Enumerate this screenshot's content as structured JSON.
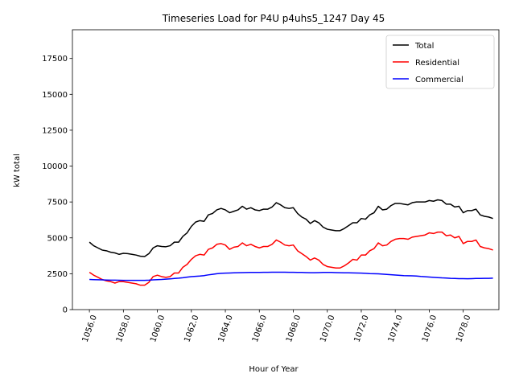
{
  "chart_data": {
    "type": "line",
    "title": "Timeseries Load for P4U p4uhs5_1247  Day 45",
    "xlabel": "Hour of Year",
    "ylabel": "kW total",
    "xlim": [
      1055.0,
      1080.1
    ],
    "ylim": [
      0,
      19500
    ],
    "xticks": [
      1056,
      1058,
      1060,
      1062,
      1064,
      1066,
      1068,
      1070,
      1072,
      1074,
      1076,
      1078
    ],
    "xtick_labels": [
      "1056.0",
      "1058.0",
      "1060.0",
      "1062.0",
      "1064.0",
      "1066.0",
      "1068.0",
      "1070.0",
      "1072.0",
      "1074.0",
      "1076.0",
      "1078.0"
    ],
    "yticks": [
      0,
      2500,
      5000,
      7500,
      10000,
      12500,
      15000,
      17500
    ],
    "ytick_labels": [
      "0",
      "2500",
      "5000",
      "7500",
      "10000",
      "12500",
      "15000",
      "17500"
    ],
    "grid": false,
    "legend_position": "top-right",
    "x": [
      1056.0,
      1056.25,
      1056.5,
      1056.75,
      1057.0,
      1057.25,
      1057.5,
      1057.75,
      1058.0,
      1058.25,
      1058.5,
      1058.75,
      1059.0,
      1059.25,
      1059.5,
      1059.75,
      1060.0,
      1060.25,
      1060.5,
      1060.75,
      1061.0,
      1061.25,
      1061.5,
      1061.75,
      1062.0,
      1062.25,
      1062.5,
      1062.75,
      1063.0,
      1063.25,
      1063.5,
      1063.75,
      1064.0,
      1064.25,
      1064.5,
      1064.75,
      1065.0,
      1065.25,
      1065.5,
      1065.75,
      1066.0,
      1066.25,
      1066.5,
      1066.75,
      1067.0,
      1067.25,
      1067.5,
      1067.75,
      1068.0,
      1068.25,
      1068.5,
      1068.75,
      1069.0,
      1069.25,
      1069.5,
      1069.75,
      1070.0,
      1070.25,
      1070.5,
      1070.75,
      1071.0,
      1071.25,
      1071.5,
      1071.75,
      1072.0,
      1072.25,
      1072.5,
      1072.75,
      1073.0,
      1073.25,
      1073.5,
      1073.75,
      1074.0,
      1074.25,
      1074.5,
      1074.75,
      1075.0,
      1075.25,
      1075.5,
      1075.75,
      1076.0,
      1076.25,
      1076.5,
      1076.75,
      1077.0,
      1077.25,
      1077.5,
      1077.75,
      1078.0,
      1078.25,
      1078.5,
      1078.75,
      1079.0,
      1079.25,
      1079.5,
      1079.75
    ],
    "series": [
      {
        "name": "Total",
        "color": "#000000",
        "values": [
          4700,
          4450,
          4300,
          4150,
          4100,
          4000,
          3950,
          3850,
          3920,
          3900,
          3850,
          3800,
          3720,
          3700,
          3900,
          4300,
          4450,
          4400,
          4380,
          4450,
          4700,
          4700,
          5100,
          5350,
          5800,
          6100,
          6200,
          6150,
          6600,
          6700,
          6950,
          7050,
          6950,
          6750,
          6850,
          6950,
          7200,
          7000,
          7100,
          6950,
          6900,
          7000,
          7000,
          7150,
          7450,
          7300,
          7100,
          7050,
          7100,
          6700,
          6450,
          6300,
          6000,
          6200,
          6050,
          5750,
          5600,
          5550,
          5500,
          5500,
          5650,
          5850,
          6050,
          6050,
          6350,
          6300,
          6600,
          6750,
          7200,
          6950,
          7000,
          7250,
          7400,
          7400,
          7350,
          7300,
          7450,
          7500,
          7500,
          7500,
          7600,
          7550,
          7650,
          7600,
          7350,
          7350,
          7150,
          7200,
          6750,
          6900,
          6900,
          7000,
          6600,
          6500,
          6450,
          6350
        ]
      },
      {
        "name": "Residential",
        "color": "#ff0000",
        "values": [
          2600,
          2400,
          2250,
          2100,
          2000,
          1950,
          1850,
          1950,
          1950,
          1900,
          1850,
          1800,
          1700,
          1700,
          1900,
          2300,
          2400,
          2300,
          2250,
          2300,
          2550,
          2550,
          2950,
          3150,
          3500,
          3750,
          3850,
          3800,
          4200,
          4300,
          4550,
          4600,
          4500,
          4200,
          4350,
          4400,
          4650,
          4450,
          4550,
          4400,
          4300,
          4400,
          4400,
          4550,
          4850,
          4700,
          4500,
          4450,
          4500,
          4100,
          3900,
          3700,
          3450,
          3600,
          3450,
          3150,
          3000,
          2950,
          2900,
          2900,
          3050,
          3250,
          3500,
          3450,
          3800,
          3800,
          4100,
          4250,
          4650,
          4450,
          4500,
          4750,
          4900,
          4950,
          4950,
          4900,
          5050,
          5100,
          5150,
          5200,
          5350,
          5300,
          5400,
          5400,
          5150,
          5200,
          5000,
          5100,
          4600,
          4750,
          4750,
          4850,
          4400,
          4300,
          4250,
          4150
        ]
      },
      {
        "name": "Commercial",
        "color": "#0000ff",
        "values": [
          2100,
          2090,
          2080,
          2070,
          2060,
          2055,
          2050,
          2045,
          2040,
          2040,
          2035,
          2035,
          2035,
          2040,
          2050,
          2070,
          2090,
          2100,
          2120,
          2140,
          2170,
          2190,
          2220,
          2260,
          2300,
          2320,
          2340,
          2370,
          2420,
          2460,
          2500,
          2530,
          2540,
          2550,
          2560,
          2570,
          2580,
          2585,
          2590,
          2595,
          2595,
          2600,
          2600,
          2605,
          2605,
          2605,
          2605,
          2600,
          2600,
          2595,
          2590,
          2580,
          2570,
          2570,
          2580,
          2590,
          2595,
          2590,
          2580,
          2570,
          2565,
          2560,
          2555,
          2550,
          2545,
          2530,
          2510,
          2500,
          2490,
          2470,
          2450,
          2430,
          2410,
          2390,
          2370,
          2360,
          2350,
          2340,
          2310,
          2290,
          2270,
          2250,
          2230,
          2210,
          2200,
          2180,
          2170,
          2160,
          2160,
          2150,
          2160,
          2170,
          2170,
          2180,
          2180,
          2190
        ]
      }
    ]
  }
}
